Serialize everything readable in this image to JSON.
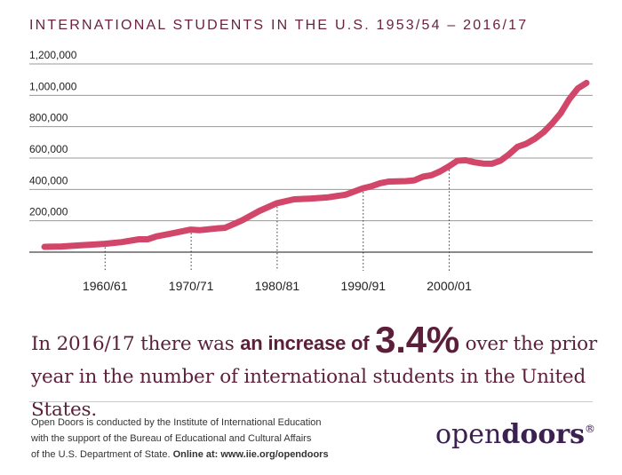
{
  "title": "INTERNATIONAL STUDENTS IN THE U.S. 1953/54 – 2016/17",
  "headline": {
    "prefix": "In 2016/17 there was ",
    "bold": "an increase of",
    "percent": "3.4%",
    "suffix": " over the prior year in the number of international students in the United States."
  },
  "footer": {
    "line1": "Open Doors is conducted by the Institute of International Education",
    "line2": "with the support of the Bureau of Educational and Cultural Affairs",
    "line3": "of the U.S. Department of State.",
    "online": "Online at: www.iie.org/opendoors"
  },
  "logo": {
    "light": "open",
    "bold": "doors",
    "mark": "®"
  },
  "colors": {
    "line": "#d2466a",
    "title": "#6b2140",
    "headline": "#5b1f3a",
    "grid": "#999999",
    "logo": "#3b2050"
  },
  "chart_data": {
    "type": "line",
    "title": "INTERNATIONAL STUDENTS IN THE U.S. 1953/54 – 2016/17",
    "xlabel": "",
    "ylabel": "",
    "x_range": [
      1953,
      2016
    ],
    "ylim": [
      0,
      1200000
    ],
    "yticks": [
      200000,
      400000,
      600000,
      800000,
      1000000,
      1200000
    ],
    "ytick_labels": [
      "200,000",
      "400,000",
      "600,000",
      "800,000",
      "1,000,000",
      "1,200,000"
    ],
    "xticks": [
      1960,
      1970,
      1980,
      1990,
      2000
    ],
    "xtick_labels": [
      "1960/61",
      "1970/71",
      "1980/81",
      "1990/91",
      "2000/01"
    ],
    "grid": true,
    "series": [
      {
        "points": [
          [
            1953,
            34000
          ],
          [
            1955,
            36000
          ],
          [
            1957,
            43000
          ],
          [
            1959,
            49000
          ],
          [
            1960,
            53000
          ],
          [
            1962,
            64000
          ],
          [
            1964,
            82000
          ],
          [
            1965,
            82000
          ],
          [
            1966,
            100000
          ],
          [
            1968,
            121000
          ],
          [
            1970,
            144000
          ],
          [
            1971,
            140000
          ],
          [
            1973,
            151000
          ],
          [
            1974,
            155000
          ],
          [
            1976,
            203000
          ],
          [
            1978,
            263000
          ],
          [
            1980,
            312000
          ],
          [
            1982,
            337000
          ],
          [
            1984,
            342000
          ],
          [
            1986,
            350000
          ],
          [
            1988,
            366000
          ],
          [
            1990,
            407000
          ],
          [
            1991,
            420000
          ],
          [
            1992,
            439000
          ],
          [
            1993,
            450000
          ],
          [
            1995,
            453000
          ],
          [
            1996,
            458000
          ],
          [
            1997,
            481000
          ],
          [
            1998,
            491000
          ],
          [
            1999,
            515000
          ],
          [
            2000,
            547000
          ],
          [
            2001,
            583000
          ],
          [
            2002,
            586000
          ],
          [
            2003,
            573000
          ],
          [
            2004,
            565000
          ],
          [
            2005,
            564000
          ],
          [
            2006,
            583000
          ],
          [
            2007,
            624000
          ],
          [
            2008,
            672000
          ],
          [
            2009,
            691000
          ],
          [
            2010,
            723000
          ],
          [
            2011,
            764000
          ],
          [
            2012,
            820000
          ],
          [
            2013,
            886000
          ],
          [
            2014,
            975000
          ],
          [
            2015,
            1044000
          ],
          [
            2016,
            1079000
          ]
        ]
      }
    ]
  }
}
